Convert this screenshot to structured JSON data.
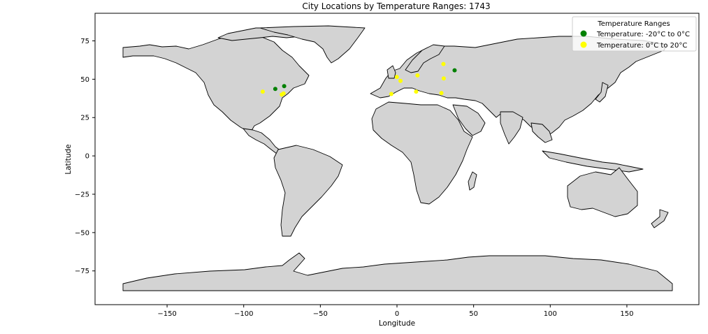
{
  "chart_data": {
    "type": "scatter",
    "title": "City Locations by Temperature Ranges: 1743",
    "xlabel": "Longitude",
    "ylabel": "Latitude",
    "xlim": [
      -197,
      197
    ],
    "ylim": [
      -97,
      93
    ],
    "xticks": [
      -150,
      -100,
      -50,
      0,
      50,
      100,
      150
    ],
    "yticks": [
      75,
      50,
      25,
      0,
      -25,
      -50,
      -75
    ],
    "xtick_labels": [
      "−150",
      "−100",
      "−50",
      "0",
      "50",
      "100",
      "150"
    ],
    "ytick_labels": [
      "75",
      "50",
      "25",
      "0",
      "−25",
      "−50",
      "−75"
    ],
    "grid": false,
    "legend_placement": "top-right",
    "legend": {
      "title": "Temperature Ranges",
      "entries": [
        {
          "label": "Temperature: -20°C to 0°C",
          "color": "#008000"
        },
        {
          "label": "Temperature: 0°C to 20°C",
          "color": "#ffff00"
        }
      ]
    },
    "series": [
      {
        "name": "Temperature: -20°C to 0°C",
        "color": "#008000",
        "points": [
          {
            "lon": -79.4,
            "lat": 43.7
          },
          {
            "lon": -73.6,
            "lat": 45.5
          },
          {
            "lon": 37.6,
            "lat": 55.8
          }
        ]
      },
      {
        "name": "Temperature: 0°C to 20°C",
        "color": "#ffff00",
        "points": [
          {
            "lon": -87.6,
            "lat": 41.9
          },
          {
            "lon": -75.2,
            "lat": 40.0
          },
          {
            "lon": -74.0,
            "lat": 40.7
          },
          {
            "lon": -0.1,
            "lat": 51.5
          },
          {
            "lon": 2.3,
            "lat": 48.9
          },
          {
            "lon": -3.7,
            "lat": 40.4
          },
          {
            "lon": 13.4,
            "lat": 52.5
          },
          {
            "lon": 12.5,
            "lat": 41.9
          },
          {
            "lon": 30.3,
            "lat": 59.9
          },
          {
            "lon": 30.5,
            "lat": 50.5
          },
          {
            "lon": 29.0,
            "lat": 41.0
          }
        ]
      }
    ],
    "basemap": {
      "land_color": "#d3d3d3",
      "border_color": "#000000"
    }
  }
}
